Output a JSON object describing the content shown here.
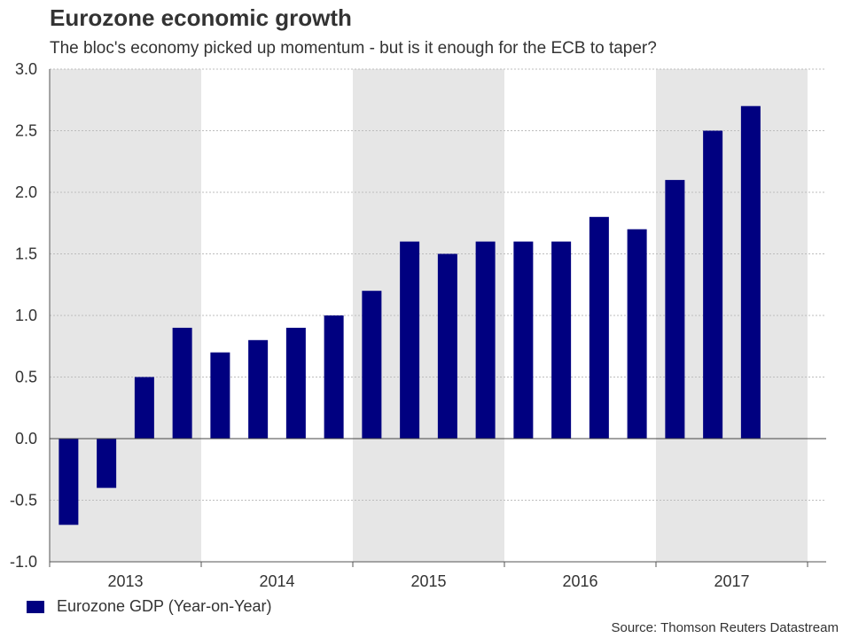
{
  "colors": {
    "bar": "#000080",
    "shade": "#e6e6e6",
    "grid": "#bdbdbd",
    "axis": "#555555"
  },
  "header": {
    "title": "Eurozone economic growth",
    "subtitle": "The bloc's economy picked up momentum - but is it enough for the ECB to taper?"
  },
  "legend": {
    "label": "Eurozone GDP (Year-on-Year)"
  },
  "footer": {
    "source": "Source: Thomson Reuters Datastream"
  },
  "chart_data": {
    "type": "bar",
    "title": "Eurozone economic growth",
    "xlabel": "",
    "ylabel": "",
    "ylim": [
      -1.0,
      3.0
    ],
    "yticks": [
      "-1.0",
      "-0.5",
      "0.0",
      "0.5",
      "1.0",
      "1.5",
      "2.0",
      "2.5",
      "3.0"
    ],
    "grid": true,
    "categories": [
      "2013 Q1",
      "2013 Q2",
      "2013 Q3",
      "2013 Q4",
      "2014 Q1",
      "2014 Q2",
      "2014 Q3",
      "2014 Q4",
      "2015 Q1",
      "2015 Q2",
      "2015 Q3",
      "2015 Q4",
      "2016 Q1",
      "2016 Q2",
      "2016 Q3",
      "2016 Q4",
      "2017 Q1",
      "2017 Q2",
      "2017 Q3",
      "2017 Q4"
    ],
    "year_labels": [
      "2013",
      "2014",
      "2015",
      "2016",
      "2017"
    ],
    "shaded_years": [
      "2013",
      "2015",
      "2017"
    ],
    "series": [
      {
        "name": "Eurozone GDP (Year-on-Year)",
        "values": [
          -0.7,
          -0.4,
          0.5,
          0.9,
          0.7,
          0.8,
          0.9,
          1.0,
          1.2,
          1.6,
          1.5,
          1.6,
          1.6,
          1.6,
          1.8,
          1.7,
          2.1,
          2.5,
          2.7,
          null
        ]
      }
    ]
  }
}
